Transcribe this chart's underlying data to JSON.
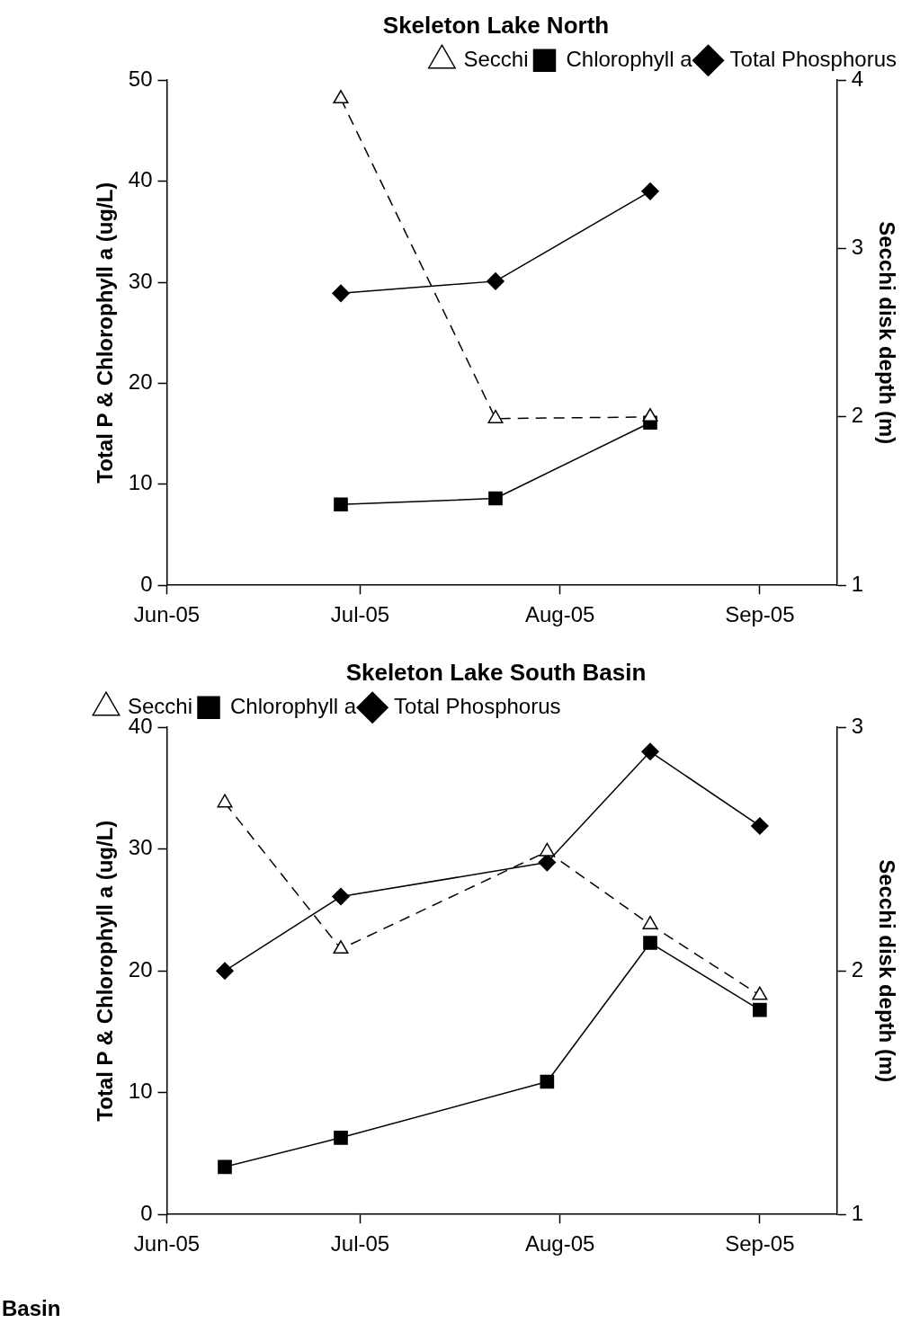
{
  "chart_data": [
    {
      "type": "line",
      "title": "Skeleton Lake North",
      "ylabel": "Total P & Chlorophyll a (ug/L)",
      "y2label": "Secchi disk depth (m)",
      "grid": false,
      "legend": "top right",
      "xlim": [
        "2005-06-01",
        "2005-09-13"
      ],
      "xticks": [
        {
          "value": "2005-06-01",
          "label": "Jun-05"
        },
        {
          "value": "2005-07-01",
          "label": "Jul-05"
        },
        {
          "value": "2005-08-01",
          "label": "Aug-05"
        },
        {
          "value": "2005-09-01",
          "label": "Sep-05"
        }
      ],
      "ylim": [
        0,
        50
      ],
      "yticks": [
        0,
        10,
        20,
        30,
        40,
        50
      ],
      "y2lim": [
        1,
        4
      ],
      "y2ticks": [
        1,
        2,
        3,
        4
      ],
      "x": [
        "2005-06-28",
        "2005-07-22",
        "2005-08-15"
      ],
      "series": [
        {
          "name": "Total Phosphorus",
          "color": "#000000",
          "marker": "diamond",
          "line_style": "solid",
          "values": [
            28.9,
            30.1,
            39.0
          ]
        },
        {
          "name": "Chlorophyll a",
          "color": "#000000",
          "marker": "square",
          "line_style": "solid",
          "values": [
            8.0,
            8.6,
            16.1
          ]
        },
        {
          "name": "Secchi",
          "color": "#000000",
          "marker": "triangle",
          "line_style": "dashed",
          "axis": "y2",
          "values": [
            3.89,
            1.99,
            2.0
          ]
        }
      ]
    },
    {
      "type": "line",
      "title": "Skeleton Lake South Basin",
      "ylabel": "Total P & Chlorophyll a (ug/L)",
      "y2label": "Secchi disk depth (m)",
      "grid": false,
      "legend": "top left",
      "annotations": [
        "Basin"
      ],
      "xlim": [
        "2005-06-01",
        "2005-09-13"
      ],
      "xticks": [
        {
          "value": "2005-06-01",
          "label": "Jun-05"
        },
        {
          "value": "2005-07-01",
          "label": "Jul-05"
        },
        {
          "value": "2005-08-01",
          "label": "Aug-05"
        },
        {
          "value": "2005-09-01",
          "label": "Sep-05"
        }
      ],
      "ylim": [
        0,
        40
      ],
      "yticks": [
        0,
        10,
        20,
        30,
        40
      ],
      "y2lim": [
        1,
        3
      ],
      "y2ticks": [
        1,
        2,
        3
      ],
      "x": [
        "2005-06-10",
        "2005-06-28",
        "2005-07-30",
        "2005-08-15",
        "2005-09-01"
      ],
      "series": [
        {
          "name": "Total Phosphorus",
          "color": "#000000",
          "marker": "diamond",
          "line_style": "solid",
          "values": [
            20.0,
            26.1,
            28.9,
            38.0,
            31.9
          ]
        },
        {
          "name": "Chlorophyll a",
          "color": "#000000",
          "marker": "square",
          "line_style": "solid",
          "values": [
            3.9,
            6.3,
            10.9,
            22.3,
            16.8
          ]
        },
        {
          "name": "Secchi",
          "color": "#000000",
          "marker": "triangle",
          "line_style": "dashed",
          "axis": "y2",
          "values": [
            2.69,
            2.09,
            2.49,
            2.19,
            1.9
          ]
        }
      ]
    }
  ]
}
